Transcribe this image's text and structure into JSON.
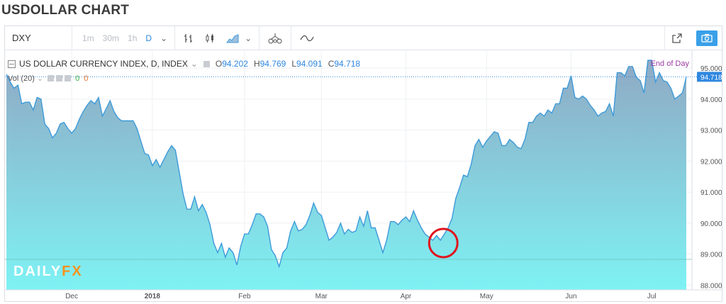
{
  "page_title": "USDOLLAR CHART",
  "toolbar": {
    "symbol": "DXY",
    "intervals": [
      "1m",
      "30m",
      "1h",
      "D"
    ],
    "active_interval": "D",
    "dropdown_caret": "⌄"
  },
  "legend": {
    "title": "US DOLLAR CURRENCY INDEX, D, INDEX",
    "open_label": "O",
    "open": "94.202",
    "high_label": "H",
    "high": "94.769",
    "low_label": "L",
    "low": "94.091",
    "close_label": "C",
    "close": "94.718",
    "volume_label": "Vol (20)",
    "volume_value_1": "0",
    "volume_value_2": "0",
    "end_of_day": "End of Day"
  },
  "logo": {
    "part1": "DAILY",
    "part2": "FX"
  },
  "colors": {
    "line": "#3d9ad9",
    "area_top": "#8fa9c4",
    "area_bottom": "#7ef2f4",
    "last_price_bg": "#2f87e0",
    "circle": "#e0141e"
  },
  "chart_data": {
    "type": "area",
    "series": [
      {
        "values": [
          94.8,
          94.55,
          94.35,
          94.45,
          93.85,
          93.9,
          93.9,
          93.65,
          94.05,
          94.0,
          93.2,
          93.05,
          92.75,
          92.9,
          93.2,
          93.25,
          93.05,
          92.9,
          93.05,
          93.35,
          93.6,
          93.8,
          93.95,
          93.85,
          94.05,
          93.45,
          93.7,
          93.95,
          93.6,
          93.4,
          93.3,
          93.3,
          93.3,
          93.3,
          93.05,
          92.65,
          92.25,
          92.2,
          91.85,
          92.05,
          91.8,
          92.05,
          92.3,
          92.5,
          92.35,
          91.65,
          90.95,
          90.45,
          90.45,
          90.85,
          90.4,
          90.6,
          90.35,
          89.95,
          89.35,
          89.05,
          89.35,
          88.9,
          89.2,
          89.05,
          88.65,
          89.25,
          89.65,
          89.65,
          89.95,
          90.3,
          90.3,
          90.2,
          89.9,
          89.15,
          88.95,
          88.6,
          89.05,
          89.2,
          89.75,
          90.05,
          89.75,
          89.8,
          89.95,
          90.25,
          90.65,
          90.35,
          90.25,
          89.85,
          89.45,
          89.55,
          89.7,
          90.0,
          89.65,
          89.8,
          89.7,
          89.75,
          90.2,
          89.9,
          90.4,
          89.85,
          89.85,
          89.45,
          89.05,
          89.45,
          90.05,
          90.05,
          89.95,
          90.1,
          90.2,
          90.05,
          90.4,
          90.1,
          89.85,
          89.65,
          89.55,
          89.45,
          89.6,
          89.45,
          89.65,
          89.85,
          90.15,
          90.8,
          91.15,
          91.55,
          91.5,
          91.9,
          92.5,
          92.7,
          92.45,
          92.65,
          92.8,
          92.95,
          92.9,
          92.5,
          92.5,
          92.7,
          92.6,
          92.45,
          92.4,
          92.7,
          93.25,
          93.25,
          93.45,
          93.55,
          93.45,
          93.65,
          93.55,
          93.85,
          93.85,
          94.35,
          94.35,
          94.75,
          94.05,
          94.0,
          94.1,
          94.0,
          93.8,
          93.65,
          93.45,
          93.55,
          93.6,
          93.85,
          93.45,
          94.85,
          94.85,
          94.75,
          95.05,
          95.05,
          94.7,
          94.6,
          94.2,
          95.25,
          95.25,
          94.55,
          94.85,
          94.6,
          94.55,
          94.35,
          94.0,
          94.1,
          94.2,
          94.718
        ]
      }
    ],
    "x_tick_labels": [
      "Dec",
      "2018",
      "Feb",
      "Mar",
      "Apr",
      "May",
      "Jun",
      "Jul"
    ],
    "y_tick_labels": [
      "95.000",
      "94.000",
      "93.000",
      "92.000",
      "91.000",
      "90.000",
      "89.000",
      "88.000"
    ],
    "ylim": [
      87.85,
      95.55
    ],
    "last_value_label": "94.718",
    "annotation": {
      "type": "circle",
      "data_index": 113
    }
  }
}
